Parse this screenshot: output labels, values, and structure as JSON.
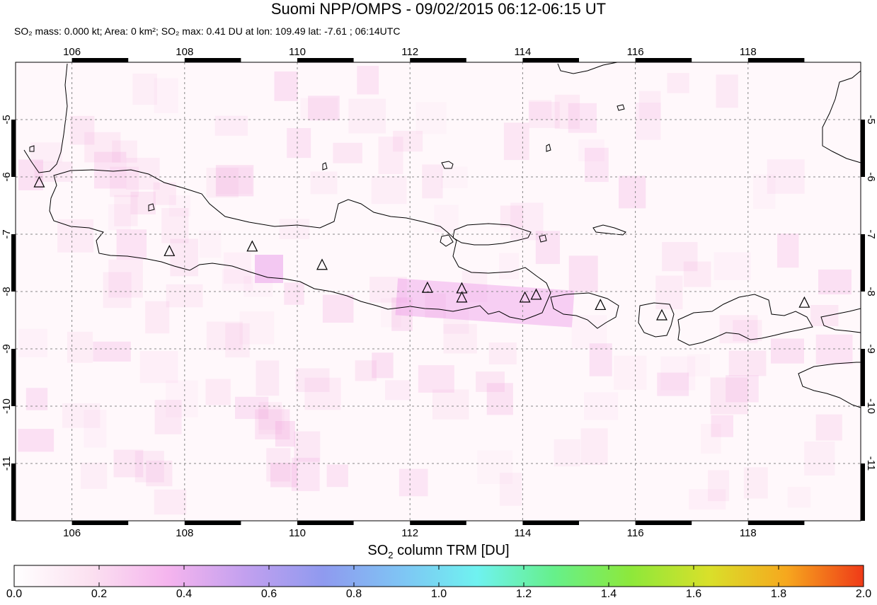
{
  "title": "Suomi NPP/OMPS - 09/02/2015 06:12-06:15 UT",
  "subtitle": {
    "mass": "SO₂ mass: 0.000 kt; Area: 0 km²;",
    "max": "SO₂ max: 0.41 DU at lon: 109.49 lat: -7.61 ; 06:14UTC"
  },
  "map": {
    "lon_range": [
      105,
      120
    ],
    "lat_range": [
      -12,
      -4
    ],
    "lon_ticks": [
      "106",
      "108",
      "110",
      "112",
      "114",
      "116",
      "118"
    ],
    "lat_ticks": [
      "-5",
      "-6",
      "-7",
      "-8",
      "-9",
      "-10",
      "-11"
    ],
    "grid": true,
    "volcano_marker": "triangle-icon",
    "volcanoes": [
      {
        "lon": 105.42,
        "lat": -6.1
      },
      {
        "lon": 107.73,
        "lat": -7.3
      },
      {
        "lon": 109.2,
        "lat": -7.22
      },
      {
        "lon": 110.44,
        "lat": -7.54
      },
      {
        "lon": 112.31,
        "lat": -7.94
      },
      {
        "lon": 112.92,
        "lat": -7.95
      },
      {
        "lon": 112.92,
        "lat": -8.11
      },
      {
        "lon": 114.04,
        "lat": -8.11
      },
      {
        "lon": 114.24,
        "lat": -8.06
      },
      {
        "lon": 115.38,
        "lat": -8.24
      },
      {
        "lon": 116.47,
        "lat": -8.42
      },
      {
        "lon": 119.0,
        "lat": -8.2
      }
    ]
  },
  "colorbar": {
    "title_prefix": "SO",
    "title_sub": "2",
    "title_suffix": " column TRM [DU]",
    "range": [
      0.0,
      2.0
    ],
    "labels": [
      "0.0",
      "0.2",
      "0.4",
      "0.6",
      "0.8",
      "1.0",
      "1.2",
      "1.4",
      "1.6",
      "1.8",
      "2.0"
    ],
    "colors": [
      "#ffffff",
      "#fbe0f0",
      "#f5b4ee",
      "#c2a0ef",
      "#8f9aef",
      "#7fc4f4",
      "#6ff2f0",
      "#66f08a",
      "#8ee83a",
      "#d9e02a",
      "#f6a81e",
      "#ef3a18"
    ]
  }
}
